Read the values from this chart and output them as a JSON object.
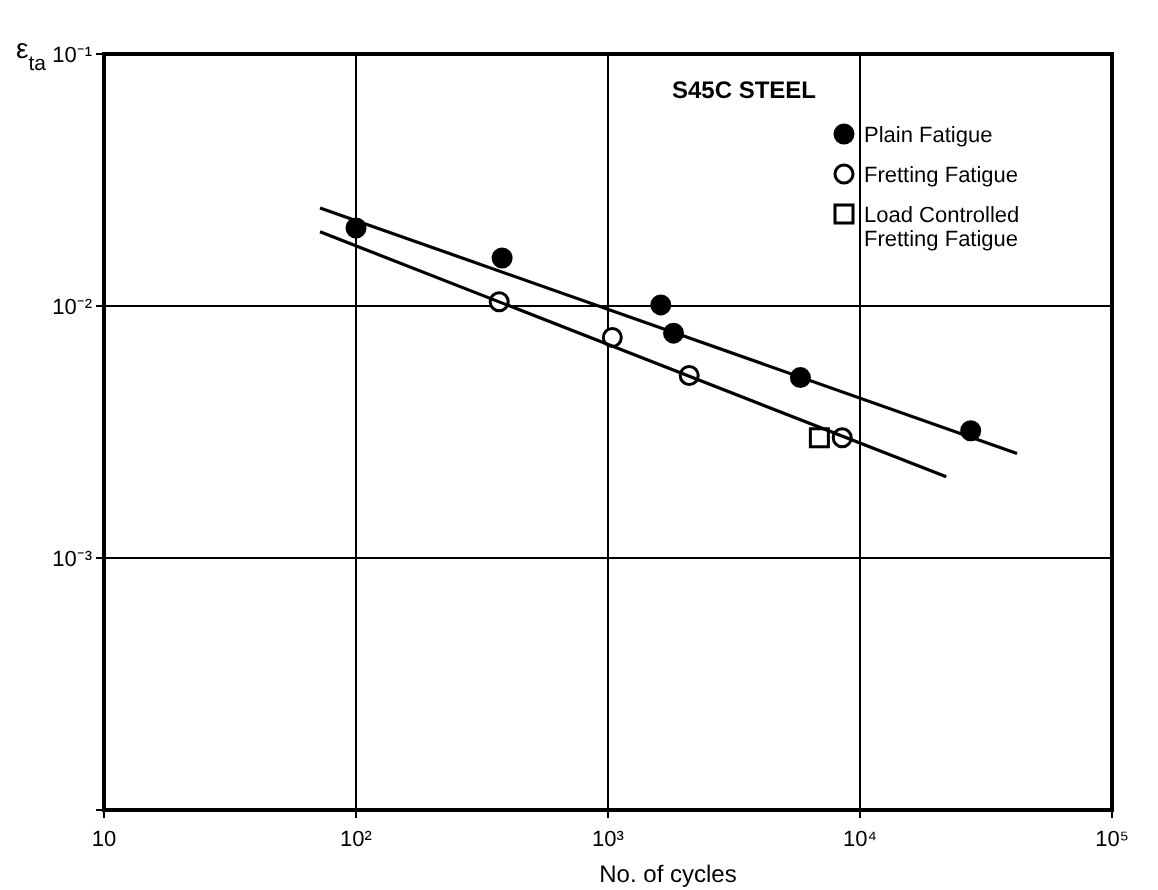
{
  "chart_data": {
    "type": "scatter",
    "xlabel": "No. of cycles",
    "ylabel": "ε$_{ta}$",
    "annotations": [
      "S45C STEEL"
    ],
    "log": "xy",
    "grid": true,
    "legend": "top right",
    "xlim": [
      10,
      100000
    ],
    "xticks": [
      10,
      {
        "value": 100,
        "label": "10²"
      },
      {
        "value": 1000,
        "label": "10³"
      },
      {
        "value": 10000,
        "label": "10⁴"
      },
      {
        "value": 100000,
        "label": "10⁵"
      }
    ],
    "ylim": [
      0.0001,
      0.1
    ],
    "yticks": [
      {
        "value": 0.0001,
        "label": null
      },
      {
        "value": 0.001,
        "label": "10⁻³"
      },
      {
        "value": 0.01,
        "label": "10⁻²"
      },
      {
        "value": 0.1,
        "label": "10⁻¹"
      }
    ],
    "series": [
      {
        "name": "Plain Fatigue",
        "color": "#000000",
        "marker": "circle",
        "x": [
          100,
          380,
          1620,
          1820,
          5800,
          27500
        ],
        "values": [
          0.0204,
          0.0155,
          0.0101,
          0.0078,
          0.0052,
          0.0032
        ]
      },
      {
        "name": "Fretting Fatigue",
        "color": "#ffffff",
        "marker": "circle",
        "x": [
          370,
          1040,
          2100,
          8500
        ],
        "values": [
          0.0104,
          0.0075,
          0.0053,
          0.003
        ]
      },
      {
        "name": "Load Controlled Fretting Fatigue",
        "color": "#ffffff",
        "marker": "square",
        "x": [
          6900
        ],
        "values": [
          0.003
        ]
      },
      {
        "type": "line",
        "color": "#000000",
        "marker": "none",
        "line_style": "solid",
        "x": [
          72,
          42000
        ],
        "values": [
          0.0245,
          0.0026
        ]
      },
      {
        "type": "line",
        "color": "#000000",
        "marker": "none",
        "line_style": "solid",
        "x": [
          72,
          22000
        ],
        "values": [
          0.0197,
          0.0021
        ]
      }
    ]
  }
}
